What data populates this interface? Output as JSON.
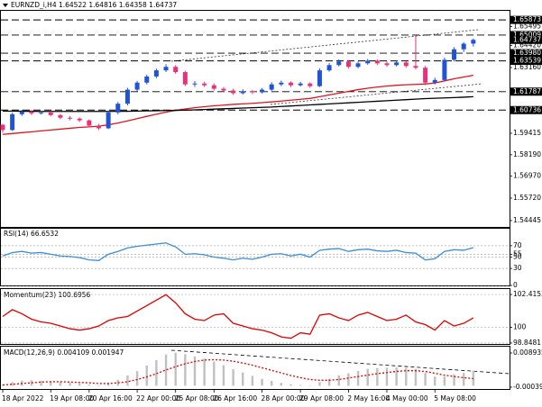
{
  "chart_data": [
    {
      "type": "candlestick",
      "title": "EURNZD_i,H4  1.64522 1.64816 1.64358 1.64737",
      "categories": [
        "18 Apr 2022",
        null,
        null,
        null,
        null,
        "19 Apr 08:00",
        null,
        null,
        null,
        "20 Apr 16:00",
        null,
        null,
        null,
        null,
        "22 Apr 00:00",
        null,
        null,
        null,
        "25 Apr 08:00",
        null,
        null,
        null,
        "26 Apr 16:00",
        null,
        null,
        null,
        null,
        "28 Apr 00:00",
        null,
        null,
        null,
        "29 Apr 08:00",
        null,
        null,
        null,
        null,
        "2 May 16:00",
        null,
        null,
        null,
        "4 May 00:00",
        null,
        null,
        null,
        null,
        "5 May 08:00",
        null,
        null,
        null,
        null
      ],
      "up_color": "#2053d6",
      "down_color": "#e8317a",
      "ohlc": [
        [
          1.599,
          1.5995,
          1.5945,
          1.596
        ],
        [
          1.596,
          1.606,
          1.5955,
          1.605
        ],
        [
          1.605,
          1.6075,
          1.604,
          1.6065
        ],
        [
          1.6065,
          1.6072,
          1.6045,
          1.6055
        ],
        [
          1.6055,
          1.6068,
          1.6048,
          1.606
        ],
        [
          1.606,
          1.6066,
          1.6038,
          1.6045
        ],
        [
          1.6045,
          1.6052,
          1.6022,
          1.603
        ],
        [
          1.603,
          1.604,
          1.6015,
          1.6025
        ],
        [
          1.6025,
          1.6032,
          1.6005,
          1.6015
        ],
        [
          1.6015,
          1.602,
          1.5975,
          1.5985
        ],
        [
          1.5985,
          1.5995,
          1.596,
          1.597
        ],
        [
          1.597,
          1.6068,
          1.5965,
          1.606
        ],
        [
          1.606,
          1.612,
          1.605,
          1.611
        ],
        [
          1.611,
          1.62,
          1.61,
          1.619
        ],
        [
          1.619,
          1.624,
          1.618,
          1.623
        ],
        [
          1.623,
          1.6275,
          1.622,
          1.6265
        ],
        [
          1.6265,
          1.631,
          1.6255,
          1.63
        ],
        [
          1.63,
          1.6335,
          1.629,
          1.632
        ],
        [
          1.632,
          1.633,
          1.628,
          1.629
        ],
        [
          1.629,
          1.6298,
          1.621,
          1.622
        ],
        [
          1.622,
          1.624,
          1.6205,
          1.6225
        ],
        [
          1.6225,
          1.6235,
          1.6205,
          1.6215
        ],
        [
          1.6215,
          1.6225,
          1.6185,
          1.6195
        ],
        [
          1.6195,
          1.6205,
          1.6175,
          1.6185
        ],
        [
          1.6185,
          1.6195,
          1.616,
          1.617
        ],
        [
          1.617,
          1.6192,
          1.6162,
          1.618
        ],
        [
          1.618,
          1.6188,
          1.6165,
          1.6175
        ],
        [
          1.6175,
          1.62,
          1.6168,
          1.619
        ],
        [
          1.619,
          1.6232,
          1.6182,
          1.622
        ],
        [
          1.622,
          1.6242,
          1.621,
          1.623
        ],
        [
          1.623,
          1.6238,
          1.6205,
          1.6215
        ],
        [
          1.6215,
          1.6235,
          1.6208,
          1.6225
        ],
        [
          1.6225,
          1.6232,
          1.62,
          1.621
        ],
        [
          1.621,
          1.6312,
          1.6205,
          1.63
        ],
        [
          1.63,
          1.6342,
          1.6292,
          1.633
        ],
        [
          1.633,
          1.6362,
          1.6322,
          1.635
        ],
        [
          1.635,
          1.6358,
          1.631,
          1.632
        ],
        [
          1.632,
          1.635,
          1.6312,
          1.634
        ],
        [
          1.634,
          1.6365,
          1.6332,
          1.6355
        ],
        [
          1.6355,
          1.6362,
          1.633,
          1.634
        ],
        [
          1.634,
          1.635,
          1.632,
          1.633
        ],
        [
          1.633,
          1.6356,
          1.6322,
          1.6345
        ],
        [
          1.6345,
          1.6352,
          1.6315,
          1.6325
        ],
        [
          1.6325,
          1.6505,
          1.6305,
          1.6315
        ],
        [
          1.6315,
          1.6325,
          1.6215,
          1.623
        ],
        [
          1.623,
          1.6258,
          1.622,
          1.6245
        ],
        [
          1.6245,
          1.6372,
          1.6238,
          1.636
        ],
        [
          1.636,
          1.6432,
          1.635,
          1.642
        ],
        [
          1.642,
          1.646,
          1.6405,
          1.6452
        ],
        [
          1.64522,
          1.64816,
          1.64358,
          1.64737
        ]
      ],
      "series": [
        {
          "color": "#e0141e",
          "values": [
            1.5935,
            1.594,
            1.5945,
            1.595,
            1.5955,
            1.596,
            1.5965,
            1.597,
            1.5975,
            1.5978,
            1.5982,
            1.599,
            1.6,
            1.6012,
            1.6025,
            1.6038,
            1.605,
            1.6062,
            1.6072,
            1.608,
            1.6087,
            1.6093,
            1.6098,
            1.6102,
            1.6106,
            1.6109,
            1.6112,
            1.6116,
            1.612,
            1.6125,
            1.613,
            1.6135,
            1.614,
            1.615,
            1.616,
            1.617,
            1.618,
            1.619,
            1.6198,
            1.6205,
            1.621,
            1.6215,
            1.6218,
            1.622,
            1.6222,
            1.6228,
            1.624,
            1.6252,
            1.6262,
            1.6272
          ]
        },
        {
          "color": "#000000",
          "values": [
            1.6068,
            1.6068,
            1.6067,
            1.6067,
            1.6066,
            1.6066,
            1.6066,
            1.6066,
            1.6066,
            1.6066,
            1.6066,
            1.6066,
            1.6067,
            1.6067,
            1.6068,
            1.6069,
            1.607,
            1.6071,
            1.6072,
            1.6073,
            1.6075,
            1.6077,
            1.6079,
            1.6081,
            1.6083,
            1.6085,
            1.6087,
            1.6089,
            1.6091,
            1.6094,
            1.6097,
            1.61,
            1.6103,
            1.6106,
            1.6109,
            1.6112,
            1.6115,
            1.6118,
            1.6121,
            1.6124,
            1.6127,
            1.613,
            1.6133,
            1.6136,
            1.6139,
            1.6141,
            1.6143,
            1.6145,
            1.6147,
            1.615
          ]
        }
      ],
      "ylim": [
        1.5408,
        1.66392
      ],
      "yticks": [
        {
          "value": 1.65495,
          "label": "1.65495"
        },
        {
          "value": 1.6442,
          "label": "1.64420"
        },
        {
          "value": 1.6316,
          "label": "1.63160"
        },
        {
          "value": 1.59415,
          "label": "1.59415"
        },
        {
          "value": 1.5819,
          "label": "1.58190"
        },
        {
          "value": 1.5697,
          "label": "1.56970"
        },
        {
          "value": 1.5572,
          "label": "1.55720"
        },
        {
          "value": 1.54445,
          "label": "1.54445"
        }
      ],
      "levels": [
        {
          "value": 1.65873,
          "label": "1.65873"
        },
        {
          "value": 1.65009,
          "label": "1.65009"
        },
        {
          "value": 1.6398,
          "label": "1.63980"
        },
        {
          "value": 1.63539,
          "label": "1.63539"
        },
        {
          "value": 1.61787,
          "label": "1.61787"
        },
        {
          "value": 1.60736,
          "label": "1.60736"
        }
      ],
      "last_price": {
        "value": 1.64737,
        "label": "1.64737"
      },
      "grid": false
    },
    {
      "type": "line",
      "title": "RSI(14) 66.6532",
      "series": [
        {
          "color": "#3a8fd9",
          "values": [
            52,
            58,
            60,
            57,
            58,
            55,
            52,
            51,
            49,
            45,
            44,
            55,
            60,
            66,
            69,
            71,
            73,
            75,
            68,
            55,
            56,
            54,
            50,
            48,
            45,
            48,
            46,
            50,
            55,
            56,
            52,
            55,
            50,
            62,
            64,
            65,
            60,
            63,
            64,
            61,
            60,
            62,
            58,
            57,
            45,
            47,
            60,
            63,
            62,
            66.6532
          ]
        }
      ],
      "ylim": [
        0,
        100
      ],
      "yticks": [
        0,
        30,
        50,
        55,
        70
      ],
      "grid": true
    },
    {
      "type": "line",
      "title": "Momentum(23) 100.6956",
      "series": [
        {
          "color": "#e00000",
          "values": [
            100.8,
            101.3,
            101.0,
            100.6,
            100.4,
            100.3,
            100.1,
            99.9,
            99.8,
            99.9,
            100.1,
            100.5,
            100.7,
            100.8,
            101.2,
            101.6,
            102.0,
            102.4,
            101.8,
            101.0,
            100.6,
            100.5,
            100.9,
            101.0,
            100.3,
            100.1,
            99.9,
            99.8,
            99.6,
            99.3,
            99.2,
            99.6,
            99.5,
            100.9,
            101.0,
            100.7,
            100.5,
            100.9,
            101.1,
            100.8,
            100.5,
            100.6,
            100.9,
            100.4,
            100.2,
            99.8,
            100.5,
            100.1,
            100.3,
            100.6956
          ]
        }
      ],
      "ylim": [
        98.78,
        102.75
      ],
      "yticks": [
        98.8481,
        100,
        102.4153
      ],
      "grid": true
    },
    {
      "type": "macd",
      "title": "MACD(12,26,9) 0.004109 0.001947",
      "histogram": {
        "color": "#c0c0c0",
        "values": [
          0.0003,
          0.001,
          0.0014,
          0.0015,
          0.0014,
          0.0012,
          0.001,
          0.0008,
          0.0006,
          0.0003,
          0.0001,
          0.0008,
          0.0016,
          0.0028,
          0.004,
          0.0055,
          0.007,
          0.0085,
          0.009,
          0.0086,
          0.008,
          0.0074,
          0.0066,
          0.0056,
          0.0045,
          0.0036,
          0.0027,
          0.0019,
          0.0013,
          0.0008,
          0.0004,
          0.0002,
          0.0001,
          0.001,
          0.0019,
          0.0028,
          0.0034,
          0.004,
          0.0046,
          0.0048,
          0.0049,
          0.005,
          0.0048,
          0.0046,
          0.0035,
          0.0025,
          0.0025,
          0.0031,
          0.0035,
          0.004109
        ]
      },
      "signal": {
        "color": "#e00000",
        "values": [
          0.0002,
          0.0004,
          0.0006,
          0.0008,
          0.001,
          0.0011,
          0.0011,
          0.001,
          0.0009,
          0.0008,
          0.0006,
          0.0006,
          0.0008,
          0.0011,
          0.0017,
          0.0024,
          0.0033,
          0.0043,
          0.0052,
          0.006,
          0.0066,
          0.007,
          0.0071,
          0.007,
          0.0067,
          0.0062,
          0.0056,
          0.0049,
          0.0042,
          0.0035,
          0.0028,
          0.0022,
          0.0017,
          0.0015,
          0.0015,
          0.0017,
          0.0021,
          0.0025,
          0.0029,
          0.0033,
          0.0036,
          0.0039,
          0.0041,
          0.0041,
          0.0039,
          0.0034,
          0.0029,
          0.0025,
          0.0022,
          0.001947
        ]
      },
      "ylim": [
        -0.000884,
        0.010408
      ],
      "yticks": [
        -0.000393,
        0.008935
      ],
      "grid": false
    }
  ]
}
